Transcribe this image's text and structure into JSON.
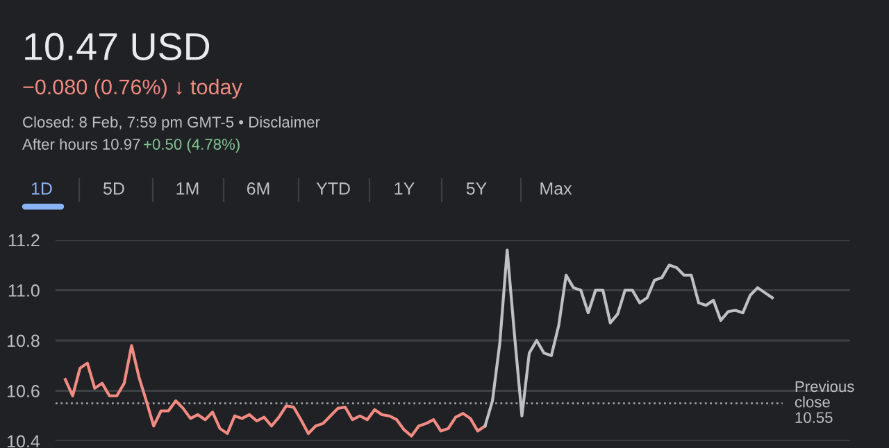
{
  "chart_data": {
    "type": "line",
    "title": "10.47 USD",
    "annotations": [
      "−0.080 (0.76%) ↓ today",
      "Closed: 8 Feb, 7:59 pm GMT-5 • Disclaimer",
      "After hours 10.97",
      "+0.50 (4.78%)",
      "1D",
      "5D",
      "1M",
      "6M",
      "YTD",
      "1Y",
      "5Y",
      "Max"
    ],
    "categories": [
      null,
      null,
      null,
      null,
      null,
      null,
      null,
      null,
      null,
      null,
      null,
      null,
      null,
      null,
      null,
      null,
      null,
      null,
      null,
      null,
      null,
      null,
      null,
      null,
      null,
      null,
      null,
      null,
      null,
      null,
      null,
      null,
      null,
      null,
      null,
      null,
      null,
      null,
      null,
      null,
      null,
      null,
      null,
      null,
      null,
      null,
      null,
      null,
      null,
      null,
      null,
      null,
      null,
      null,
      null,
      null,
      null,
      null,
      null,
      null,
      null,
      null,
      null,
      null,
      null,
      null,
      null,
      null,
      null,
      null,
      null,
      null,
      null,
      null,
      null,
      null,
      null,
      null,
      null,
      null,
      null,
      null,
      null,
      null,
      null,
      null,
      null,
      null,
      null,
      null,
      null,
      null,
      null,
      null,
      null,
      null,
      null
    ],
    "series": [
      {
        "color": "#f28b82",
        "values": [
          10.645,
          10.58,
          10.69,
          10.71,
          10.61,
          10.63,
          10.58,
          10.58,
          10.63,
          10.78,
          10.655,
          10.56,
          10.46,
          10.52,
          10.52,
          10.56,
          10.53,
          10.49,
          10.505,
          10.485,
          10.515,
          10.45,
          10.43,
          10.5,
          10.49,
          10.505,
          10.48,
          10.495,
          10.46,
          10.495,
          10.54,
          10.535,
          10.485,
          10.43,
          10.46,
          10.47,
          10.5,
          10.53,
          10.535,
          10.485,
          10.5,
          10.485,
          10.525,
          10.505,
          10.5,
          10.485,
          10.445,
          10.42,
          10.46,
          10.47,
          10.485,
          10.44,
          10.45,
          10.495,
          10.51,
          10.49,
          10.44,
          10.46,
          null,
          null,
          null,
          null,
          null,
          null,
          null,
          null,
          null,
          null,
          null,
          null,
          null,
          null,
          null,
          null,
          null,
          null,
          null,
          null,
          null,
          null,
          null,
          null,
          null,
          null,
          null,
          null,
          null,
          null,
          null,
          null,
          null,
          null,
          null,
          null,
          null,
          null,
          null
        ]
      },
      {
        "color": "#bdc1c6",
        "values": [
          null,
          null,
          null,
          null,
          null,
          null,
          null,
          null,
          null,
          null,
          null,
          null,
          null,
          null,
          null,
          null,
          null,
          null,
          null,
          null,
          null,
          null,
          null,
          null,
          null,
          null,
          null,
          null,
          null,
          null,
          null,
          null,
          null,
          null,
          null,
          null,
          null,
          null,
          null,
          null,
          null,
          null,
          null,
          null,
          null,
          null,
          null,
          null,
          null,
          null,
          null,
          null,
          null,
          null,
          null,
          null,
          null,
          10.46,
          10.56,
          10.79,
          11.16,
          10.82,
          10.5,
          10.75,
          10.8,
          10.75,
          10.74,
          10.86,
          11.06,
          11.01,
          11.0,
          10.91,
          11.0,
          11.0,
          10.87,
          10.905,
          11.0,
          11.0,
          10.95,
          10.97,
          11.04,
          11.05,
          11.1,
          11.09,
          11.06,
          11.06,
          10.95,
          10.94,
          10.96,
          10.88,
          10.915,
          10.92,
          10.91,
          10.98,
          11.01,
          10.99,
          10.97
        ]
      }
    ],
    "ylim": [
      10.4,
      11.2
    ],
    "yticks": [
      10.4,
      10.6,
      10.8,
      {
        "value": 11.0,
        "label": "11.0"
      },
      11.2
    ],
    "grid": "y",
    "tick_labels": "y",
    "ref_lines": [
      {
        "axis": "y",
        "value": 10.55,
        "label": "Previous\nclose\n10.55",
        "line_style": "dotted",
        "color": "#9aa0a6"
      }
    ]
  }
}
